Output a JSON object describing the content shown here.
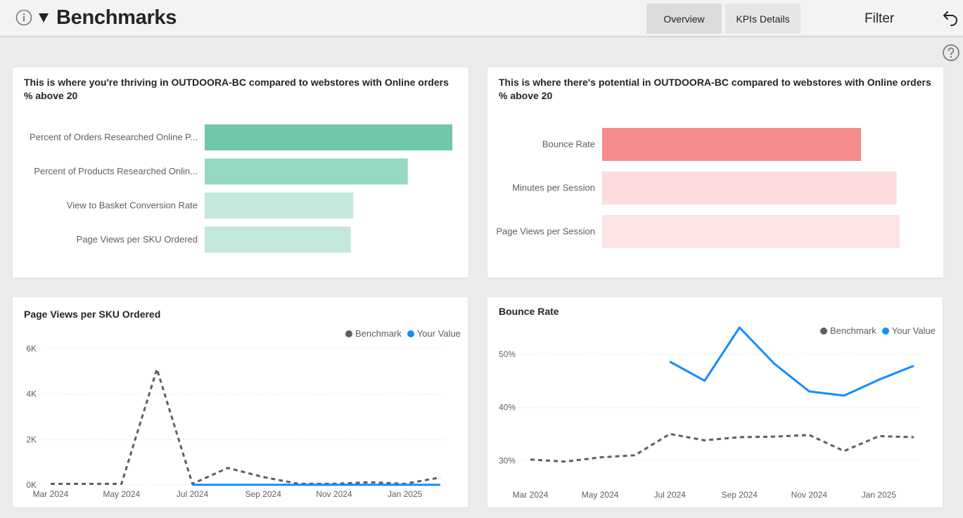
{
  "header": {
    "title": "Benchmarks",
    "tabs": [
      {
        "label": "Overview",
        "active": true
      },
      {
        "label": "KPIs Details",
        "active": false
      }
    ],
    "filter_label": "Filter",
    "icons": [
      "info-icon",
      "caret-down-icon",
      "undo-icon",
      "help-icon"
    ]
  },
  "thriving": {
    "title_line1": "This is where you're thriving in OUTDOORA-BC compared to webstores with Online orders",
    "title_line2": "% above 20",
    "labels": [
      "Percent of Orders Researched Online P...",
      "Percent of Products Researched Onlin...",
      "View to Basket Conversion Rate",
      "Page Views per SKU Ordered"
    ],
    "chart_data": {
      "type": "bar",
      "orientation": "horizontal",
      "categories": [
        "Percent of Orders Researched Online P...",
        "Percent of Products Researched Onlin...",
        "View to Basket Conversion Rate",
        "Page Views per SKU Ordered"
      ],
      "values": [
        1.0,
        0.82,
        0.6,
        0.59
      ],
      "colors": [
        "#70c8aa",
        "#96d8bf",
        "#c4e7dc",
        "#c4e7dc"
      ]
    }
  },
  "potential": {
    "title_line1": "This is where there's potential in OUTDOORA-BC compared to webstores with Online orders",
    "title_line2": "% above 20",
    "labels": [
      "Bounce Rate",
      "Minutes per Session",
      "Page Views per Session"
    ],
    "chart_data": {
      "type": "bar",
      "orientation": "horizontal",
      "categories": [
        "Bounce Rate",
        "Minutes per Session",
        "Page Views per Session"
      ],
      "values": [
        0.87,
        0.99,
        1.0
      ],
      "colors": [
        "#f68c8c",
        "#fddcde",
        "#fde3e4"
      ]
    }
  },
  "page_views_chart": {
    "title": "Page Views per SKU Ordered",
    "legend": {
      "benchmark": "Benchmark",
      "your_value": "Your Value",
      "benchmark_color": "#605e5c",
      "your_value_color": "#118dff"
    },
    "y_ticks": [
      "6K",
      "4K",
      "2K",
      "0K"
    ],
    "x_ticks": [
      "Mar 2024",
      "May 2024",
      "Jul 2024",
      "Sep 2024",
      "Nov 2024",
      "Jan 2025"
    ],
    "chart_data": {
      "type": "line",
      "x": [
        "Mar 2024",
        "Apr 2024",
        "May 2024",
        "Jun 2024",
        "Jul 2024",
        "Aug 2024",
        "Sep 2024",
        "Oct 2024",
        "Nov 2024",
        "Dec 2024",
        "Jan 2025",
        "Feb 2025"
      ],
      "ylim": [
        0,
        6000
      ],
      "series": [
        {
          "name": "Benchmark",
          "values": [
            50,
            50,
            50,
            5100,
            50,
            750,
            350,
            50,
            50,
            120,
            50,
            330
          ]
        },
        {
          "name": "Your Value",
          "values": [
            null,
            null,
            null,
            null,
            10,
            10,
            10,
            10,
            10,
            10,
            10,
            10
          ]
        }
      ]
    }
  },
  "bounce_chart": {
    "title": "Bounce Rate",
    "legend": {
      "benchmark": "Benchmark",
      "your_value": "Your Value",
      "benchmark_color": "#605e5c",
      "your_value_color": "#118dff"
    },
    "y_ticks": [
      "50%",
      "40%",
      "30%"
    ],
    "x_ticks": [
      "Mar 2024",
      "May 2024",
      "Jul 2024",
      "Sep 2024",
      "Nov 2024",
      "Jan 2025"
    ],
    "chart_data": {
      "type": "line",
      "x": [
        "Mar 2024",
        "Apr 2024",
        "May 2024",
        "Jun 2024",
        "Jul 2024",
        "Aug 2024",
        "Sep 2024",
        "Oct 2024",
        "Nov 2024",
        "Dec 2024",
        "Jan 2025",
        "Feb 2025"
      ],
      "ylim": [
        27,
        55
      ],
      "series": [
        {
          "name": "Benchmark",
          "values": [
            30.2,
            29.8,
            30.6,
            31.0,
            35.0,
            33.8,
            34.4,
            34.5,
            34.8,
            31.8,
            34.6,
            34.4
          ]
        },
        {
          "name": "Your Value",
          "values": [
            null,
            null,
            null,
            null,
            48.6,
            45.0,
            55.0,
            48.2,
            43.0,
            42.2,
            45.2,
            47.8
          ]
        }
      ]
    }
  }
}
